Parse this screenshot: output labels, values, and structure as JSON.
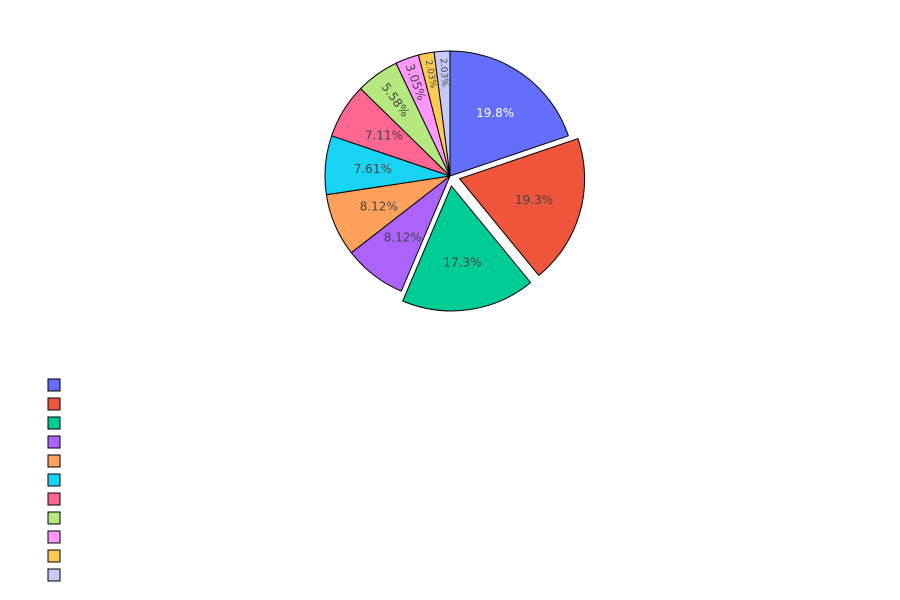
{
  "chart_data": {
    "type": "pie",
    "title": "",
    "legend_position": "bottom-left",
    "direction": "clockwise",
    "sort": "descending",
    "pulled_slices": [
      1,
      2
    ],
    "slices": [
      {
        "label": "",
        "value": 19.8,
        "text": "19.8%",
        "color": "#636efa",
        "text_color": "#ffffff"
      },
      {
        "label": "",
        "value": 19.3,
        "text": "19.3%",
        "color": "#ef553b",
        "text_color": "#444444"
      },
      {
        "label": "",
        "value": 17.3,
        "text": "17.3%",
        "color": "#00cc96",
        "text_color": "#444444"
      },
      {
        "label": "",
        "value": 8.12,
        "text": "8.12%",
        "color": "#ab63fa",
        "text_color": "#444444"
      },
      {
        "label": "",
        "value": 8.12,
        "text": "8.12%",
        "color": "#ffa15a",
        "text_color": "#444444"
      },
      {
        "label": "",
        "value": 7.61,
        "text": "7.61%",
        "color": "#19d3f3",
        "text_color": "#444444"
      },
      {
        "label": "",
        "value": 7.11,
        "text": "7.11%",
        "color": "#ff6692",
        "text_color": "#444444"
      },
      {
        "label": "",
        "value": 5.58,
        "text": "5.58%",
        "color": "#b6e880",
        "text_color": "#444444"
      },
      {
        "label": "",
        "value": 3.05,
        "text": "3.05%",
        "color": "#ff97ff",
        "text_color": "#444444"
      },
      {
        "label": "",
        "value": 2.03,
        "text": "2.03%",
        "color": "#fecb52",
        "text_color": "#444444"
      },
      {
        "label": "",
        "value": 2.03,
        "text": "2.03%",
        "color": "#c6caf9",
        "text_color": "#444444"
      }
    ]
  }
}
